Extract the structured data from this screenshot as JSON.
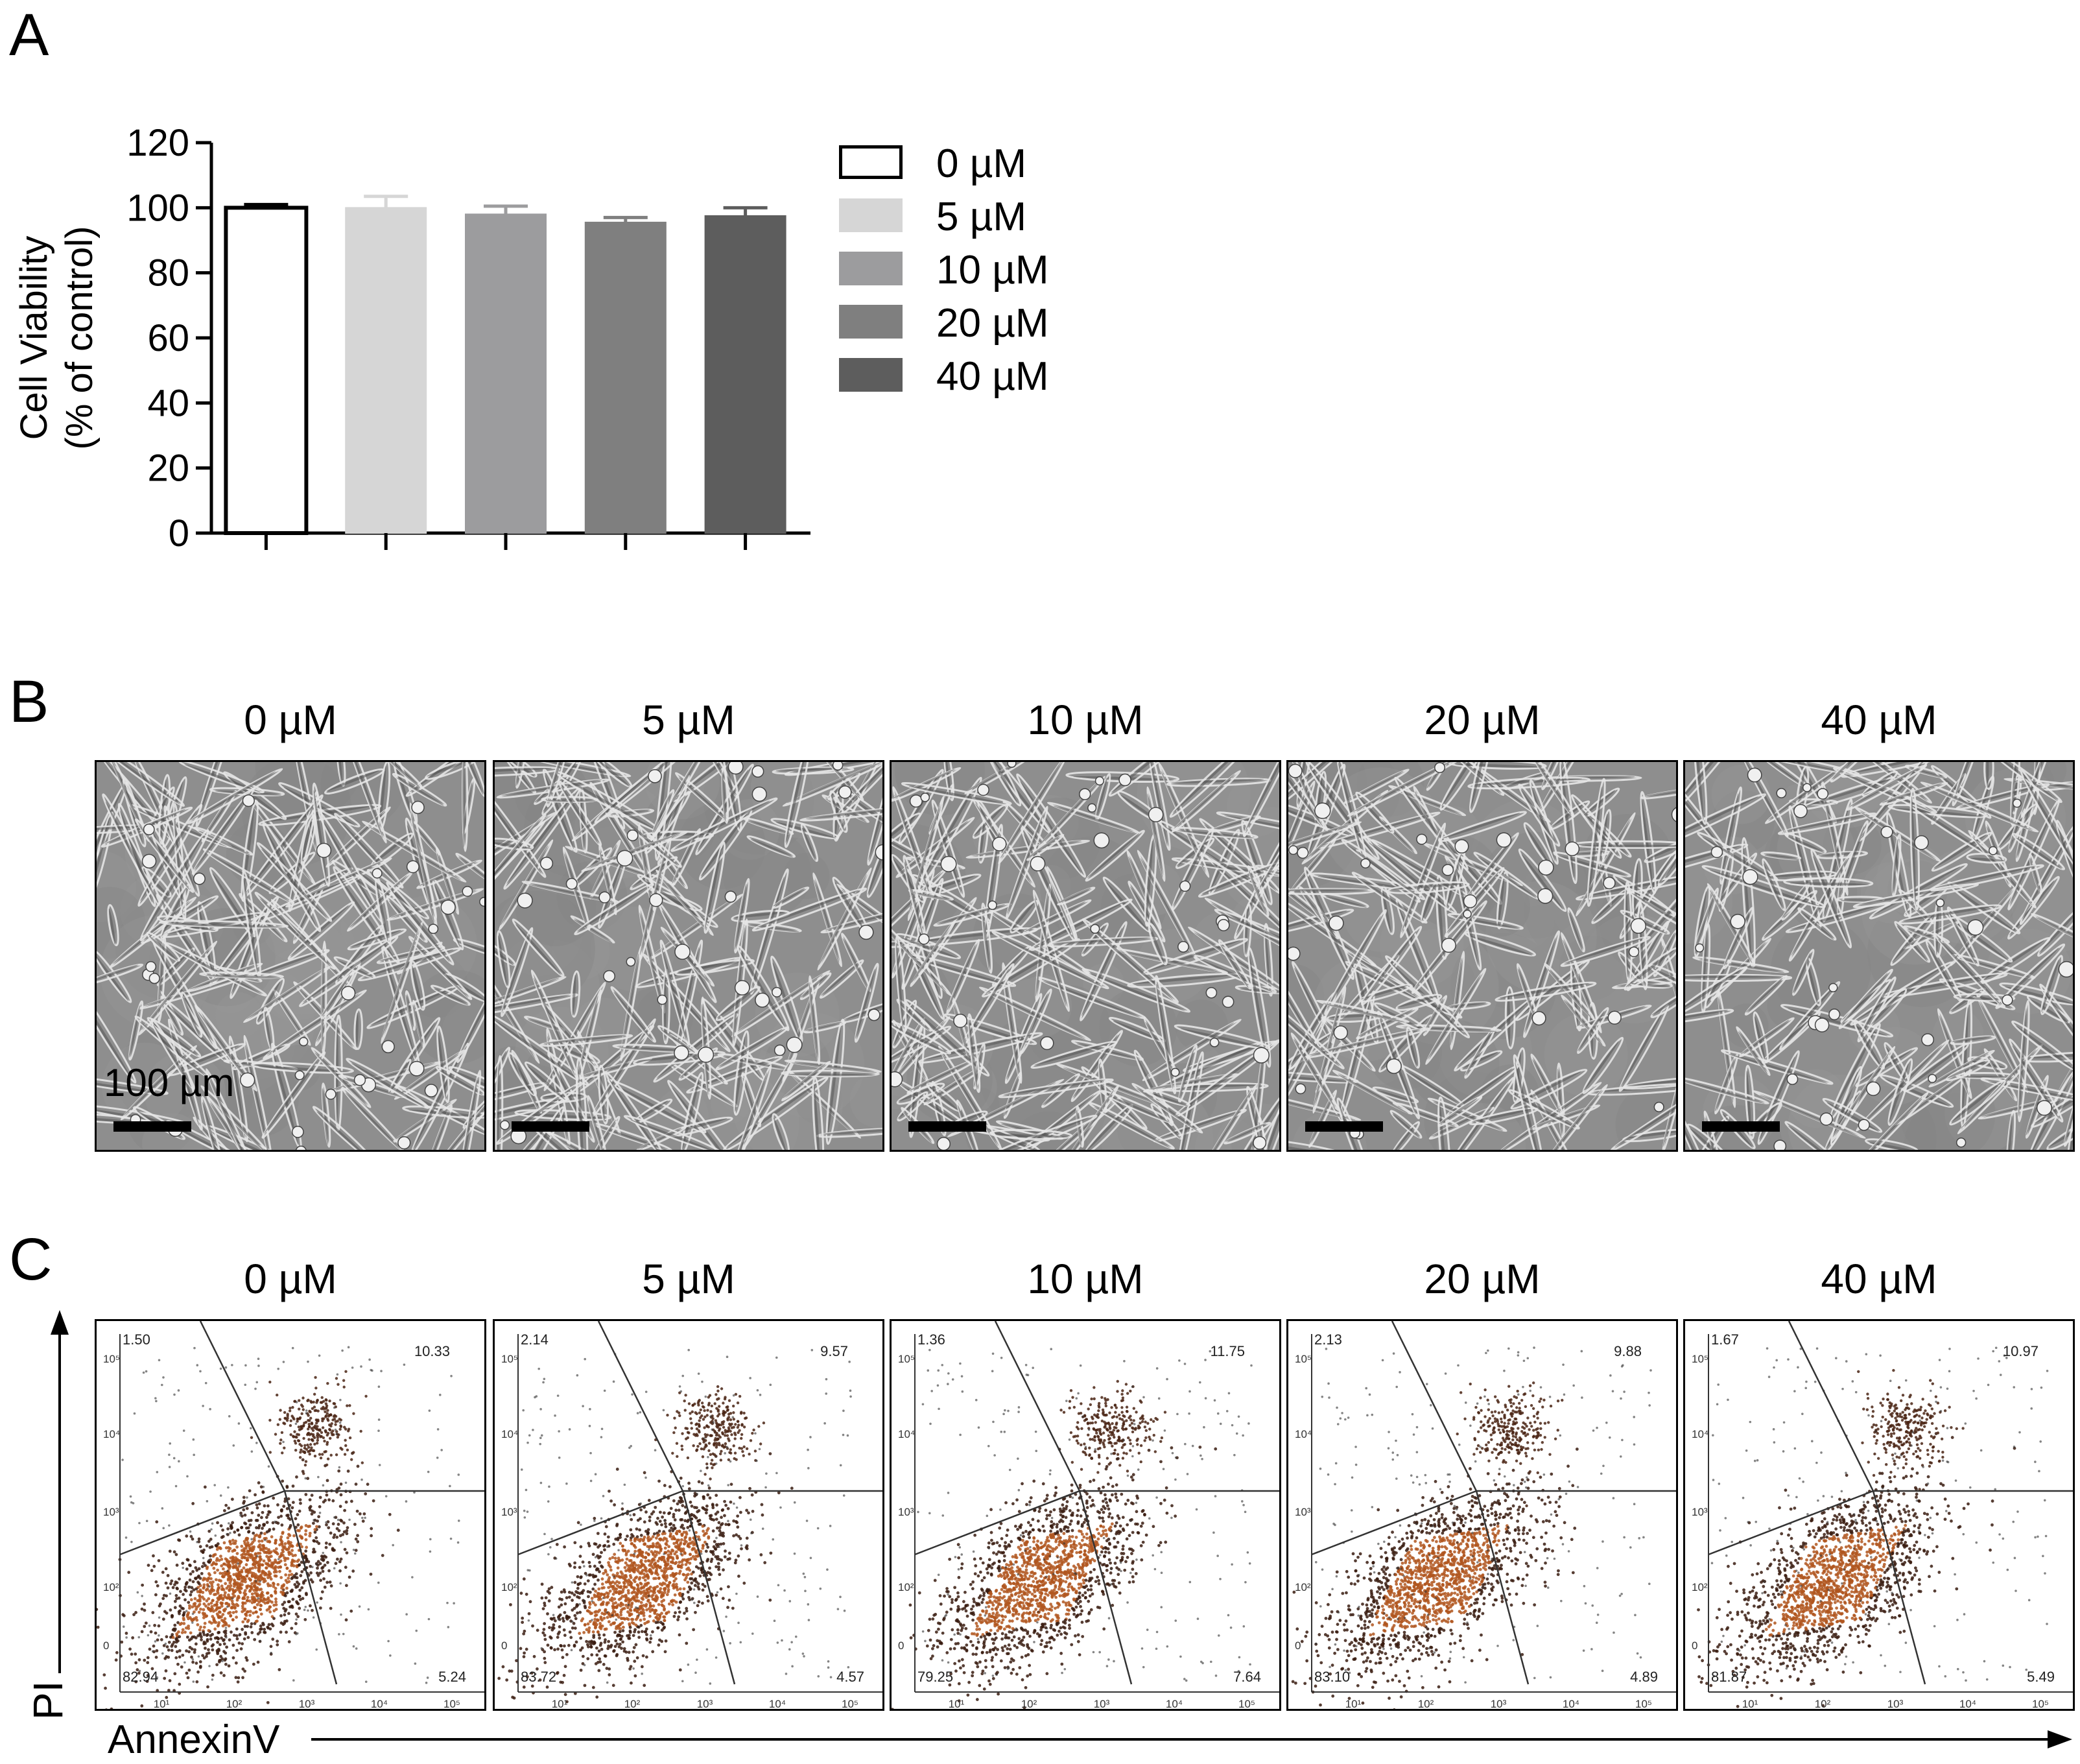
{
  "panels": {
    "a_letter": "A",
    "b_letter": "B",
    "c_letter": "C"
  },
  "chart_data": {
    "type": "bar",
    "categories": [
      "0 µM",
      "5 µM",
      "10 µM",
      "20 µM",
      "40 µM"
    ],
    "series": [
      {
        "values": [
          100,
          100,
          98,
          95.5,
          97.5
        ],
        "errors": [
          1,
          3.5,
          2.5,
          1.5,
          2.5
        ]
      }
    ],
    "ylabel_line1": "Cell Viability",
    "ylabel_line2": "(% of control)",
    "ylim": [
      0,
      120
    ],
    "yticks": [
      "0",
      "20",
      "40",
      "60",
      "80",
      "100",
      "120"
    ],
    "legend": [
      "0 µM",
      "5 µM",
      "10 µM",
      "20 µM",
      "40 µM"
    ],
    "legend_position": "right",
    "colors": [
      "#ffffff",
      "#d6d6d6",
      "#9c9c9e",
      "#7f7f7f",
      "#5d5d5d"
    ]
  },
  "micrographs": {
    "labels": [
      "0 µM",
      "5 µM",
      "10 µM",
      "20 µM",
      "40 µM"
    ],
    "scalebar_label": "100 µm"
  },
  "flow": {
    "labels": [
      "0 µM",
      "5 µM",
      "10 µM",
      "20 µM",
      "40 µM"
    ],
    "y_axis_label": "PI",
    "x_axis_label": "AnnexinV",
    "y_ticks": [
      "10⁵",
      "10⁴",
      "10³",
      "10²",
      "0"
    ],
    "x_ticks": [
      "10¹",
      "10²",
      "10³",
      "10⁴",
      "10⁵"
    ],
    "quadrants": [
      {
        "ul": "1.50",
        "ur": "10.33",
        "ll": "82.94",
        "lr": "5.24"
      },
      {
        "ul": "2.14",
        "ur": "9.57",
        "ll": "83.72",
        "lr": "4.57"
      },
      {
        "ul": "1.36",
        "ur": "11.75",
        "ll": "79.25",
        "lr": "7.64"
      },
      {
        "ul": "2.13",
        "ur": "9.88",
        "ll": "83.10",
        "lr": "4.89"
      },
      {
        "ul": "1.67",
        "ur": "10.97",
        "ll": "81.87",
        "lr": "5.49"
      }
    ]
  }
}
